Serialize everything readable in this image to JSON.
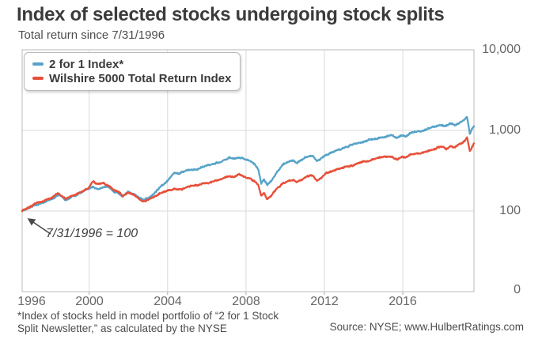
{
  "title": "Index of selected stocks undergoing stock splits",
  "subtitle": "Total return since 7/31/1996",
  "annotation": {
    "text": "7/31/1996 = 100"
  },
  "footnote": {
    "line1": "*Index of stocks held in model portfolio of “2 for 1 Stock",
    "line2": "Split Newsletter,” as calculated by the NYSE"
  },
  "source": "Source: NYSE; www.HulbertRatings.com",
  "colors": {
    "blue": "#57a3c8",
    "red": "#e7503a",
    "grid": "#dadada",
    "plot_border": "#c6c6c6",
    "tick": "#ababab",
    "arrow": "#4a4a4a"
  },
  "chart_data": {
    "type": "line",
    "title": "Index of selected stocks undergoing stock splits",
    "subtitle": "Total return since 7/31/1996",
    "y_scale": "log",
    "grid": true,
    "legend_position": "top-left",
    "base_value_note": "7/31/1996 = 100",
    "x_range": [
      1996.58,
      2019.63
    ],
    "y_axis": {
      "side": "right",
      "tick_labels": [
        "10,000",
        "1,000",
        "100",
        "0"
      ],
      "tick_values": [
        10000,
        1000,
        100,
        0
      ]
    },
    "x_axis": {
      "tick_labels": [
        "1996",
        "2000",
        "2004",
        "2008",
        "2012",
        "2016"
      ],
      "tick_values": [
        1996,
        2000,
        2004,
        2008,
        2012,
        2016
      ]
    },
    "series": [
      {
        "name": "2 for 1 Index*",
        "color": "#57a3c8",
        "points": [
          [
            1996.58,
            100
          ],
          [
            1996.9,
            108
          ],
          [
            1997.2,
            117
          ],
          [
            1997.5,
            124
          ],
          [
            1997.8,
            132
          ],
          [
            1998.1,
            141
          ],
          [
            1998.45,
            157
          ],
          [
            1998.65,
            147
          ],
          [
            1998.8,
            137
          ],
          [
            1999.1,
            151
          ],
          [
            1999.4,
            159
          ],
          [
            1999.7,
            170
          ],
          [
            1999.95,
            186
          ],
          [
            2000.2,
            199
          ],
          [
            2000.45,
            186
          ],
          [
            2000.7,
            194
          ],
          [
            2000.95,
            197
          ],
          [
            2001.2,
            178
          ],
          [
            2001.5,
            164
          ],
          [
            2001.72,
            150
          ],
          [
            2002.0,
            167
          ],
          [
            2002.3,
            158
          ],
          [
            2002.55,
            147
          ],
          [
            2002.8,
            139
          ],
          [
            2003.05,
            148
          ],
          [
            2003.35,
            166
          ],
          [
            2003.7,
            208
          ],
          [
            2004.05,
            252
          ],
          [
            2004.35,
            300
          ],
          [
            2004.6,
            293
          ],
          [
            2004.9,
            310
          ],
          [
            2005.2,
            328
          ],
          [
            2005.6,
            350
          ],
          [
            2006.0,
            377
          ],
          [
            2006.4,
            392
          ],
          [
            2006.8,
            420
          ],
          [
            2007.15,
            460
          ],
          [
            2007.4,
            447
          ],
          [
            2007.65,
            470
          ],
          [
            2007.95,
            442
          ],
          [
            2008.2,
            416
          ],
          [
            2008.45,
            382
          ],
          [
            2008.62,
            330
          ],
          [
            2008.78,
            228
          ],
          [
            2008.92,
            254
          ],
          [
            2009.08,
            212
          ],
          [
            2009.3,
            240
          ],
          [
            2009.6,
            310
          ],
          [
            2009.9,
            376
          ],
          [
            2010.2,
            416
          ],
          [
            2010.42,
            430
          ],
          [
            2010.58,
            392
          ],
          [
            2010.9,
            440
          ],
          [
            2011.2,
            478
          ],
          [
            2011.42,
            490
          ],
          [
            2011.62,
            420
          ],
          [
            2011.85,
            456
          ],
          [
            2012.1,
            500
          ],
          [
            2012.45,
            556
          ],
          [
            2012.8,
            585
          ],
          [
            2013.15,
            635
          ],
          [
            2013.5,
            675
          ],
          [
            2013.85,
            715
          ],
          [
            2014.2,
            755
          ],
          [
            2014.55,
            790
          ],
          [
            2014.9,
            830
          ],
          [
            2015.2,
            855
          ],
          [
            2015.45,
            875
          ],
          [
            2015.7,
            805
          ],
          [
            2015.95,
            860
          ],
          [
            2016.15,
            830
          ],
          [
            2016.45,
            920
          ],
          [
            2016.8,
            965
          ],
          [
            2017.1,
            1010
          ],
          [
            2017.45,
            1070
          ],
          [
            2017.75,
            1130
          ],
          [
            2017.98,
            1185
          ],
          [
            2018.2,
            1115
          ],
          [
            2018.45,
            1205
          ],
          [
            2018.65,
            1155
          ],
          [
            2018.9,
            1255
          ],
          [
            2019.1,
            1350
          ],
          [
            2019.28,
            1450
          ],
          [
            2019.42,
            920
          ],
          [
            2019.52,
            1040
          ],
          [
            2019.63,
            1130
          ]
        ]
      },
      {
        "name": "Wilshire 5000 Total Return Index",
        "color": "#e7503a",
        "points": [
          [
            1996.58,
            100
          ],
          [
            1996.9,
            110
          ],
          [
            1997.2,
            121
          ],
          [
            1997.5,
            130
          ],
          [
            1997.8,
            139
          ],
          [
            1998.1,
            149
          ],
          [
            1998.45,
            166
          ],
          [
            1998.65,
            154
          ],
          [
            1998.8,
            141
          ],
          [
            1999.1,
            157
          ],
          [
            1999.4,
            166
          ],
          [
            1999.7,
            178
          ],
          [
            1999.95,
            197
          ],
          [
            2000.2,
            233
          ],
          [
            2000.45,
            213
          ],
          [
            2000.7,
            222
          ],
          [
            2000.95,
            209
          ],
          [
            2001.2,
            190
          ],
          [
            2001.5,
            174
          ],
          [
            2001.72,
            157
          ],
          [
            2002.0,
            172
          ],
          [
            2002.3,
            161
          ],
          [
            2002.55,
            144
          ],
          [
            2002.8,
            131
          ],
          [
            2003.05,
            139
          ],
          [
            2003.35,
            151
          ],
          [
            2003.7,
            168
          ],
          [
            2004.05,
            181
          ],
          [
            2004.35,
            191
          ],
          [
            2004.6,
            187
          ],
          [
            2004.9,
            196
          ],
          [
            2005.2,
            204
          ],
          [
            2005.6,
            212
          ],
          [
            2006.0,
            227
          ],
          [
            2006.4,
            235
          ],
          [
            2006.8,
            249
          ],
          [
            2007.15,
            270
          ],
          [
            2007.4,
            263
          ],
          [
            2007.65,
            282
          ],
          [
            2007.95,
            264
          ],
          [
            2008.2,
            251
          ],
          [
            2008.45,
            234
          ],
          [
            2008.62,
            206
          ],
          [
            2008.78,
            151
          ],
          [
            2008.92,
            164
          ],
          [
            2009.08,
            137
          ],
          [
            2009.3,
            153
          ],
          [
            2009.6,
            190
          ],
          [
            2009.9,
            221
          ],
          [
            2010.2,
            240
          ],
          [
            2010.42,
            247
          ],
          [
            2010.58,
            227
          ],
          [
            2010.9,
            252
          ],
          [
            2011.2,
            269
          ],
          [
            2011.42,
            275
          ],
          [
            2011.62,
            239
          ],
          [
            2011.85,
            257
          ],
          [
            2012.1,
            298
          ],
          [
            2012.45,
            316
          ],
          [
            2012.8,
            330
          ],
          [
            2013.15,
            355
          ],
          [
            2013.5,
            375
          ],
          [
            2013.85,
            398
          ],
          [
            2014.2,
            418
          ],
          [
            2014.55,
            436
          ],
          [
            2014.9,
            455
          ],
          [
            2015.2,
            467
          ],
          [
            2015.45,
            477
          ],
          [
            2015.7,
            441
          ],
          [
            2015.95,
            468
          ],
          [
            2016.15,
            452
          ],
          [
            2016.45,
            497
          ],
          [
            2016.8,
            520
          ],
          [
            2017.1,
            545
          ],
          [
            2017.45,
            575
          ],
          [
            2017.75,
            605
          ],
          [
            2017.98,
            632
          ],
          [
            2018.2,
            596
          ],
          [
            2018.45,
            640
          ],
          [
            2018.65,
            614
          ],
          [
            2018.9,
            664
          ],
          [
            2019.1,
            720
          ],
          [
            2019.28,
            815
          ],
          [
            2019.42,
            552
          ],
          [
            2019.52,
            622
          ],
          [
            2019.63,
            690
          ]
        ]
      }
    ]
  }
}
